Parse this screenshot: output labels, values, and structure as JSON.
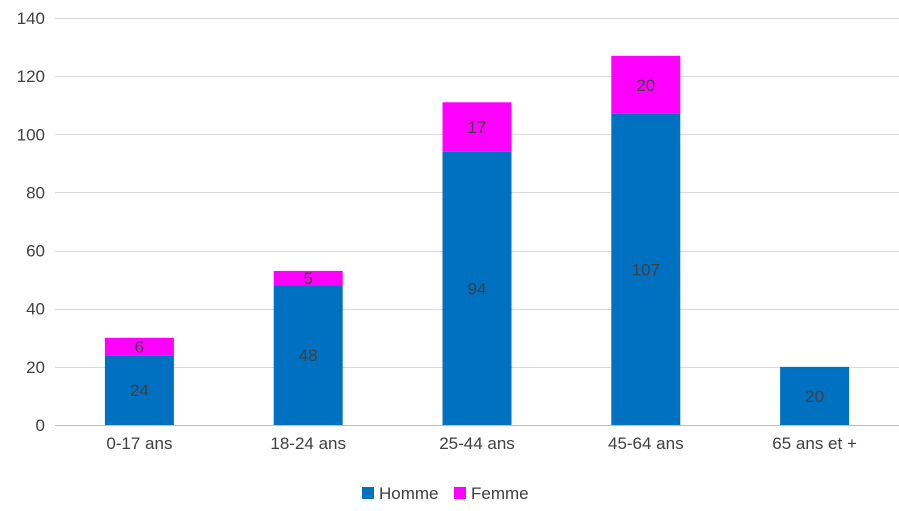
{
  "chart_data": {
    "type": "bar",
    "stacked": true,
    "title": "",
    "xlabel": "",
    "ylabel": "",
    "categories": [
      "0-17 ans",
      "18-24 ans",
      "25-44 ans",
      "45-64 ans",
      "65 ans et +"
    ],
    "series": [
      {
        "name": "Homme",
        "color": "#0070C0",
        "values": [
          24,
          48,
          94,
          107,
          20
        ]
      },
      {
        "name": "Femme",
        "color": "#FF00FF",
        "values": [
          6,
          5,
          17,
          20,
          null
        ]
      }
    ],
    "ylim": [
      0,
      140
    ],
    "yticks": [
      0,
      20,
      40,
      60,
      80,
      100,
      120,
      140
    ],
    "grid": true,
    "legend_position": "bottom",
    "data_labels": true
  }
}
